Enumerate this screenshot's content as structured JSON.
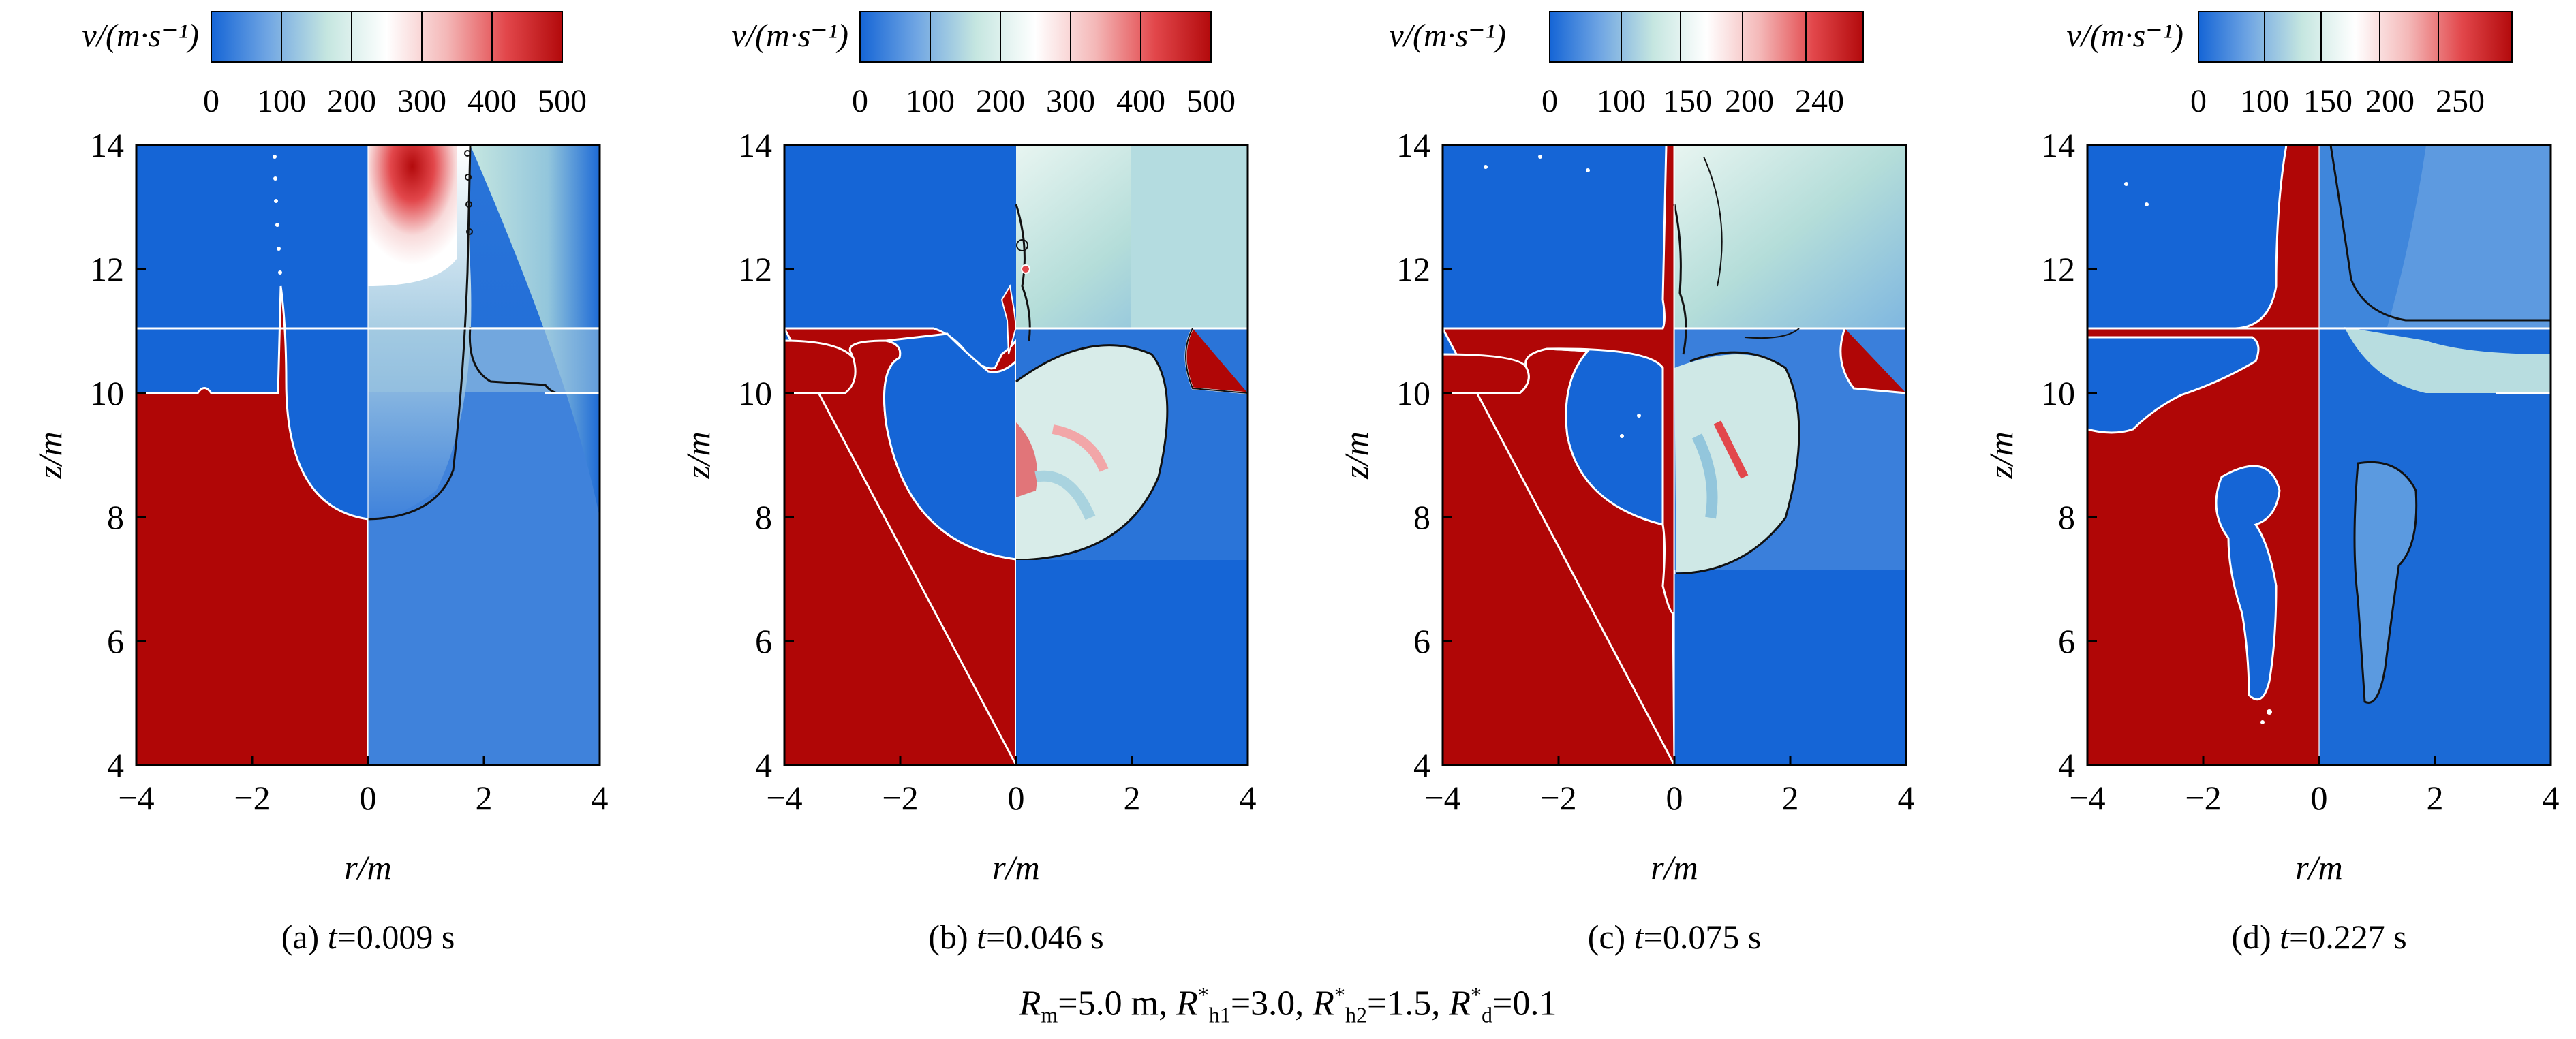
{
  "colorbar_label": "v/(m·s⁻¹)",
  "colors": {
    "fluid_a": "#b00606",
    "fluid_b": "#1565d6",
    "cmap": [
      "#1565d6",
      "#6fa5e3",
      "#c5e6e0",
      "#ffffff",
      "#f4b8b8",
      "#e2474b",
      "#b30a0c"
    ],
    "interface_left": "#ffffff",
    "interface_right": "#111111"
  },
  "axes": {
    "xlabel": "r/m",
    "ylabel": "z/m",
    "xlim": [
      -4,
      4
    ],
    "ylim": [
      4,
      14
    ],
    "xticks": [
      "−4",
      "−2",
      "0",
      "2",
      "4"
    ],
    "yticks": [
      "4",
      "6",
      "8",
      "10",
      "12",
      "14"
    ]
  },
  "panels": [
    {
      "caption": {
        "prefix": "(a) ",
        "var": "t",
        "value": "=0.009 s"
      },
      "colorbar": {
        "range": [
          0,
          500
        ],
        "ticks": [
          "0",
          "100",
          "200",
          "300",
          "400",
          "500"
        ]
      }
    },
    {
      "caption": {
        "prefix": "(b) ",
        "var": "t",
        "value": "=0.046 s"
      },
      "colorbar": {
        "range": [
          0,
          500
        ],
        "ticks": [
          "0",
          "100",
          "200",
          "300",
          "400",
          "500"
        ]
      }
    },
    {
      "caption": {
        "prefix": "(c) ",
        "var": "t",
        "value": "=0.075 s"
      },
      "colorbar": {
        "range": [
          0,
          260
        ],
        "ticks": [
          "0",
          "100",
          "150",
          "200",
          "240"
        ]
      }
    },
    {
      "caption": {
        "prefix": "(d) ",
        "var": "t",
        "value": "=0.227 s"
      },
      "colorbar": {
        "range": [
          0,
          270
        ],
        "ticks": [
          "0",
          "100",
          "150",
          "200",
          "250"
        ]
      }
    }
  ],
  "caption_main": {
    "rm_sym": "R",
    "rm_sub": "m",
    "rm_val": "=5.0 m, ",
    "rh1_sym": "R",
    "rh1_sub": "h1",
    "rh1_sup": "*",
    "rh1_val": "=3.0, ",
    "rh2_sym": "R",
    "rh2_sub": "h2",
    "rh2_sup": "*",
    "rh2_val": "=1.5, ",
    "rd_sym": "R",
    "rd_sub": "d",
    "rd_sup": "*",
    "rd_val": "=0.1"
  },
  "chart_data": {
    "type": "heatmap",
    "description_values": {
      "times_s": [
        0.009,
        0.046,
        0.075,
        0.227
      ],
      "colorbar_max": [
        500,
        500,
        260,
        270
      ]
    }
  }
}
